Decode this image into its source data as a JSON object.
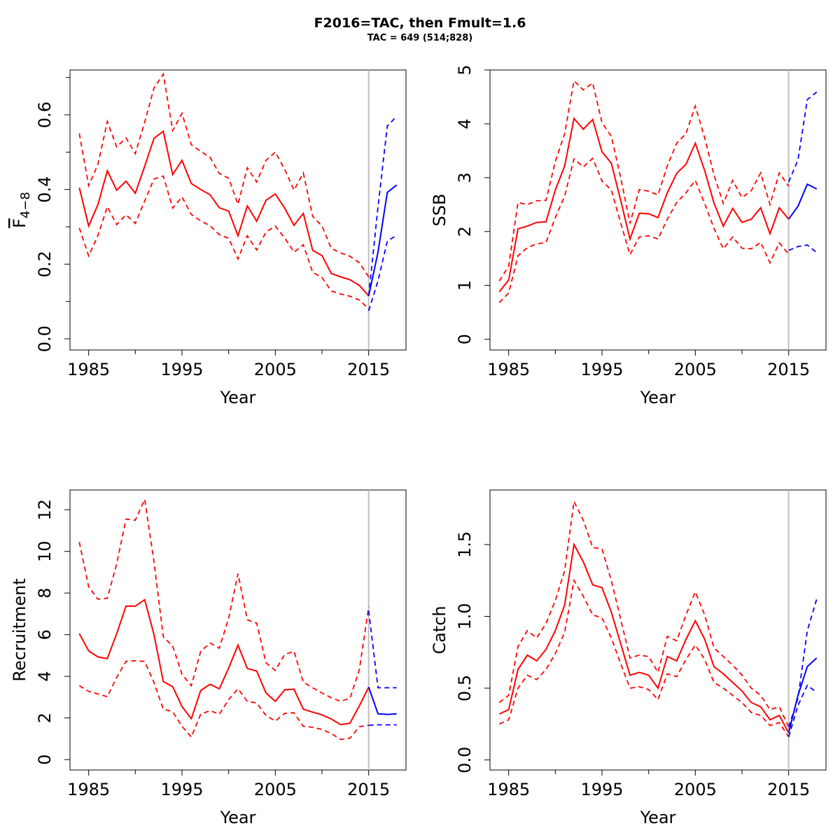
{
  "title": "F2016=TAC, then Fmult=1.6",
  "subtitle": "TAC = 649 (514;828)",
  "colors": {
    "historical": "#ff0000",
    "forecast": "#0000ff",
    "divider": "#bebebe"
  },
  "chart_data": [
    {
      "type": "line",
      "panel": "top-left",
      "xlabel": "Year",
      "ylabel": "F4-8",
      "ylabel_main": "F",
      "ylabel_sub": "4−8",
      "xlim": [
        1983,
        2019
      ],
      "ylim": [
        -0.03,
        0.72
      ],
      "xticks": [
        1985,
        1995,
        2005,
        2015
      ],
      "yticks": [
        "0.0",
        "0.2",
        "0.4",
        "0.6"
      ],
      "ytick_values": [
        0,
        0.2,
        0.4,
        0.6
      ],
      "minor_yticks": [
        0.1,
        0.3,
        0.5,
        0.7
      ],
      "divider_x": 2015,
      "historical": {
        "x": [
          1984,
          1985,
          1986,
          1987,
          1988,
          1989,
          1990,
          1991,
          1992,
          1993,
          1994,
          1995,
          1996,
          1997,
          1998,
          1999,
          2000,
          2001,
          2002,
          2003,
          2004,
          2005,
          2006,
          2007,
          2008,
          2009,
          2010,
          2011,
          2012,
          2013,
          2014,
          2015
        ],
        "estimate": [
          0.405,
          0.302,
          0.36,
          0.45,
          0.398,
          0.422,
          0.39,
          0.462,
          0.537,
          0.556,
          0.44,
          0.478,
          0.416,
          0.4,
          0.386,
          0.351,
          0.342,
          0.276,
          0.356,
          0.315,
          0.371,
          0.388,
          0.35,
          0.304,
          0.336,
          0.237,
          0.223,
          0.175,
          0.166,
          0.158,
          0.143,
          0.115
        ],
        "upper": [
          0.55,
          0.41,
          0.468,
          0.582,
          0.514,
          0.538,
          0.496,
          0.58,
          0.672,
          0.709,
          0.558,
          0.604,
          0.52,
          0.502,
          0.486,
          0.443,
          0.43,
          0.36,
          0.458,
          0.42,
          0.478,
          0.5,
          0.454,
          0.398,
          0.444,
          0.328,
          0.302,
          0.242,
          0.23,
          0.221,
          0.204,
          0.166
        ],
        "lower": [
          0.297,
          0.222,
          0.277,
          0.354,
          0.306,
          0.332,
          0.309,
          0.369,
          0.428,
          0.436,
          0.35,
          0.38,
          0.333,
          0.316,
          0.303,
          0.279,
          0.269,
          0.214,
          0.276,
          0.238,
          0.286,
          0.302,
          0.27,
          0.232,
          0.252,
          0.178,
          0.164,
          0.128,
          0.12,
          0.114,
          0.104,
          0.08
        ]
      },
      "forecast": {
        "x": [
          2015,
          2016,
          2017,
          2018
        ],
        "estimate": [
          0.115,
          0.232,
          0.392,
          0.412
        ],
        "upper": [
          0.115,
          0.353,
          0.57,
          0.596
        ],
        "lower": [
          0.075,
          0.155,
          0.262,
          0.277
        ]
      }
    },
    {
      "type": "line",
      "panel": "top-right",
      "xlabel": "Year",
      "ylabel": "SSB",
      "xlim": [
        1983,
        2019
      ],
      "ylim": [
        -0.2,
        5.0
      ],
      "xticks": [
        1985,
        1995,
        2005,
        2015
      ],
      "yticks": [
        "0",
        "1",
        "2",
        "3",
        "4",
        "5"
      ],
      "ytick_values": [
        0,
        1,
        2,
        3,
        4,
        5
      ],
      "minor_yticks": [],
      "divider_x": 2015,
      "historical": {
        "x": [
          1984,
          1985,
          1986,
          1987,
          1988,
          1989,
          1990,
          1991,
          1992,
          1993,
          1994,
          1995,
          1996,
          1997,
          1998,
          1999,
          2000,
          2001,
          2002,
          2003,
          2004,
          2005,
          2006,
          2007,
          2008,
          2009,
          2010,
          2011,
          2012,
          2013,
          2014,
          2015
        ],
        "estimate": [
          0.88,
          1.1,
          2.05,
          2.1,
          2.17,
          2.18,
          2.77,
          3.22,
          4.1,
          3.9,
          4.08,
          3.48,
          3.27,
          2.58,
          1.86,
          2.34,
          2.33,
          2.26,
          2.72,
          3.08,
          3.25,
          3.64,
          3.13,
          2.53,
          2.1,
          2.43,
          2.17,
          2.23,
          2.44,
          1.96,
          2.44,
          2.23
        ],
        "upper": [
          1.08,
          1.36,
          2.54,
          2.5,
          2.57,
          2.58,
          3.3,
          3.82,
          4.8,
          4.63,
          4.76,
          4.02,
          3.77,
          3.0,
          2.15,
          2.78,
          2.75,
          2.68,
          3.22,
          3.64,
          3.82,
          4.33,
          3.74,
          3.05,
          2.52,
          2.95,
          2.63,
          2.76,
          3.09,
          2.5,
          3.09,
          2.84
        ],
        "lower": [
          0.68,
          0.86,
          1.55,
          1.7,
          1.77,
          1.8,
          2.26,
          2.66,
          3.35,
          3.2,
          3.36,
          2.94,
          2.77,
          2.16,
          1.57,
          1.9,
          1.92,
          1.86,
          2.23,
          2.54,
          2.72,
          2.95,
          2.52,
          2.06,
          1.68,
          1.9,
          1.69,
          1.68,
          1.8,
          1.42,
          1.79,
          1.58
        ]
      },
      "forecast": {
        "x": [
          2015,
          2016,
          2017,
          2018
        ],
        "estimate": [
          2.23,
          2.47,
          2.88,
          2.79
        ],
        "upper": [
          2.92,
          3.33,
          4.45,
          4.59
        ],
        "lower": [
          1.65,
          1.72,
          1.75,
          1.61
        ]
      }
    },
    {
      "type": "line",
      "panel": "bottom-left",
      "xlabel": "Year",
      "ylabel": "Recruitment",
      "xlim": [
        1983,
        2019
      ],
      "ylim": [
        -0.5,
        12.95
      ],
      "xticks": [
        1985,
        1995,
        2005,
        2015
      ],
      "yticks": [
        "0",
        "2",
        "4",
        "6",
        "8",
        "10",
        "12"
      ],
      "ytick_values": [
        0,
        2,
        4,
        6,
        8,
        10,
        12
      ],
      "minor_yticks": [],
      "divider_x": 2015,
      "historical": {
        "x": [
          1984,
          1985,
          1986,
          1987,
          1988,
          1989,
          1990,
          1991,
          1992,
          1993,
          1994,
          1995,
          1996,
          1997,
          1998,
          1999,
          2000,
          2001,
          2002,
          2003,
          2004,
          2005,
          2006,
          2007,
          2008,
          2009,
          2010,
          2011,
          2012,
          2013,
          2014,
          2015
        ],
        "estimate": [
          6.05,
          5.22,
          4.93,
          4.85,
          6.05,
          7.37,
          7.37,
          7.68,
          6.0,
          3.75,
          3.5,
          2.55,
          1.96,
          3.32,
          3.62,
          3.4,
          4.4,
          5.5,
          4.38,
          4.25,
          3.2,
          2.8,
          3.35,
          3.38,
          2.42,
          2.28,
          2.15,
          1.95,
          1.68,
          1.75,
          2.58,
          3.48
        ],
        "upper": [
          10.45,
          8.3,
          7.7,
          7.75,
          9.4,
          11.55,
          11.5,
          12.5,
          9.5,
          5.9,
          5.45,
          4.1,
          3.55,
          5.2,
          5.6,
          5.35,
          6.8,
          8.93,
          6.72,
          6.55,
          4.65,
          4.28,
          5.05,
          5.2,
          3.72,
          3.45,
          3.2,
          2.97,
          2.8,
          2.95,
          4.3,
          7.35
        ],
        "lower": [
          3.55,
          3.28,
          3.15,
          3.02,
          3.95,
          4.72,
          4.75,
          4.72,
          3.7,
          2.42,
          2.3,
          1.6,
          1.08,
          2.18,
          2.35,
          2.18,
          2.88,
          3.4,
          2.8,
          2.72,
          2.12,
          1.85,
          2.22,
          2.25,
          1.6,
          1.55,
          1.45,
          1.25,
          0.97,
          1.03,
          1.58,
          1.65
        ]
      },
      "forecast": {
        "x": [
          2015,
          2016,
          2017,
          2018
        ],
        "estimate": [
          3.48,
          2.2,
          2.17,
          2.2
        ],
        "upper": [
          7.15,
          3.45,
          3.45,
          3.45
        ],
        "lower": [
          1.65,
          1.67,
          1.67,
          1.67
        ]
      }
    },
    {
      "type": "line",
      "panel": "bottom-right",
      "xlabel": "Year",
      "ylabel": "Catch",
      "xlim": [
        1983,
        2019
      ],
      "ylim": [
        -0.07,
        1.88
      ],
      "xticks": [
        1985,
        1995,
        2005,
        2015
      ],
      "yticks": [
        "0.0",
        "0.5",
        "1.0",
        "1.5"
      ],
      "ytick_values": [
        0,
        0.5,
        1.0,
        1.5
      ],
      "minor_yticks": [],
      "divider_x": 2015,
      "historical": {
        "x": [
          1984,
          1985,
          1986,
          1987,
          1988,
          1989,
          1990,
          1991,
          1992,
          1993,
          1994,
          1995,
          1996,
          1997,
          1998,
          1999,
          2000,
          2001,
          2002,
          2003,
          2004,
          2005,
          2006,
          2007,
          2008,
          2009,
          2010,
          2011,
          2012,
          2013,
          2014,
          2015
        ],
        "estimate": [
          0.32,
          0.35,
          0.63,
          0.73,
          0.69,
          0.77,
          0.9,
          1.08,
          1.5,
          1.38,
          1.22,
          1.2,
          1.03,
          0.81,
          0.59,
          0.61,
          0.59,
          0.5,
          0.72,
          0.69,
          0.84,
          0.97,
          0.84,
          0.65,
          0.6,
          0.54,
          0.48,
          0.4,
          0.37,
          0.28,
          0.31,
          0.19
        ],
        "upper": [
          0.4,
          0.45,
          0.79,
          0.9,
          0.85,
          0.95,
          1.11,
          1.32,
          1.8,
          1.67,
          1.48,
          1.47,
          1.25,
          0.98,
          0.71,
          0.73,
          0.72,
          0.61,
          0.86,
          0.83,
          1.01,
          1.17,
          1.01,
          0.78,
          0.72,
          0.66,
          0.59,
          0.5,
          0.45,
          0.35,
          0.37,
          0.23
        ],
        "lower": [
          0.25,
          0.28,
          0.5,
          0.59,
          0.56,
          0.63,
          0.74,
          0.89,
          1.25,
          1.14,
          1.01,
          0.99,
          0.85,
          0.67,
          0.5,
          0.51,
          0.49,
          0.42,
          0.6,
          0.58,
          0.7,
          0.8,
          0.7,
          0.54,
          0.5,
          0.45,
          0.4,
          0.33,
          0.31,
          0.24,
          0.26,
          0.16
        ]
      },
      "forecast": {
        "x": [
          2015,
          2016,
          2017,
          2018
        ],
        "estimate": [
          0.19,
          0.45,
          0.65,
          0.71
        ],
        "upper": [
          0.23,
          0.43,
          0.9,
          1.12
        ],
        "lower": [
          0.16,
          0.38,
          0.52,
          0.47
        ]
      }
    }
  ]
}
